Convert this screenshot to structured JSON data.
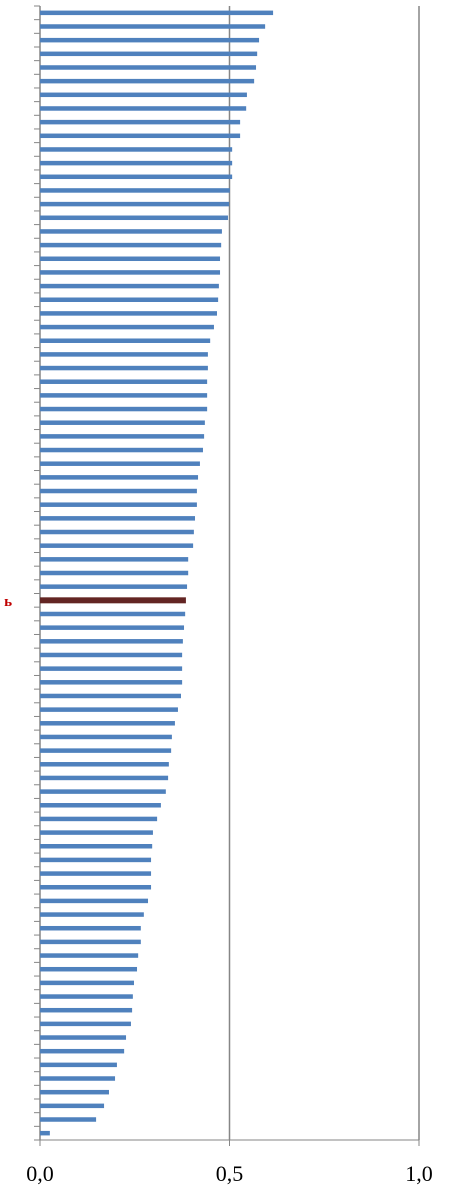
{
  "chart_data": {
    "type": "barh",
    "categories": [
      null,
      null,
      null,
      null,
      null,
      null,
      null,
      null,
      null,
      null,
      null,
      null,
      null,
      null,
      null,
      null,
      null,
      null,
      null,
      null,
      null,
      null,
      null,
      null,
      null,
      null,
      null,
      null,
      null,
      null,
      null,
      null,
      null,
      null,
      null,
      null,
      null,
      null,
      null,
      null,
      null,
      null,
      null,
      "ь",
      null,
      null,
      null,
      null,
      null,
      null,
      null,
      null,
      null,
      null,
      null,
      null,
      null,
      null,
      null,
      null,
      null,
      null,
      null,
      null,
      null,
      null,
      null,
      null,
      null,
      null,
      null,
      null,
      null,
      null,
      null,
      null,
      null,
      null,
      null,
      null,
      null,
      null,
      null
    ],
    "values": [
      0.615,
      0.594,
      0.578,
      0.573,
      0.57,
      0.565,
      0.546,
      0.544,
      0.528,
      0.528,
      0.507,
      0.507,
      0.507,
      0.501,
      0.499,
      0.496,
      0.48,
      0.478,
      0.475,
      0.475,
      0.472,
      0.47,
      0.467,
      0.459,
      0.449,
      0.443,
      0.443,
      0.441,
      0.441,
      0.441,
      0.435,
      0.433,
      0.43,
      0.422,
      0.417,
      0.414,
      0.414,
      0.409,
      0.406,
      0.404,
      0.391,
      0.391,
      0.388,
      0.385,
      0.383,
      0.38,
      0.377,
      0.375,
      0.375,
      0.375,
      0.372,
      0.364,
      0.356,
      0.348,
      0.346,
      0.34,
      0.338,
      0.332,
      0.319,
      0.309,
      0.298,
      0.296,
      0.293,
      0.293,
      0.293,
      0.285,
      0.274,
      0.266,
      0.266,
      0.259,
      0.256,
      0.248,
      0.245,
      0.243,
      0.24,
      0.227,
      0.222,
      0.203,
      0.198,
      0.182,
      0.169,
      0.148,
      0.026
    ],
    "color": "#4f81bd",
    "highlight_color": "#632523",
    "xlim": [
      0,
      1
    ],
    "xticks": [
      {
        "value": 0,
        "label": "0,0"
      },
      {
        "value": 0.5,
        "label": "0,5"
      },
      {
        "value": 1,
        "label": "1,0"
      }
    ],
    "grid": true
  }
}
